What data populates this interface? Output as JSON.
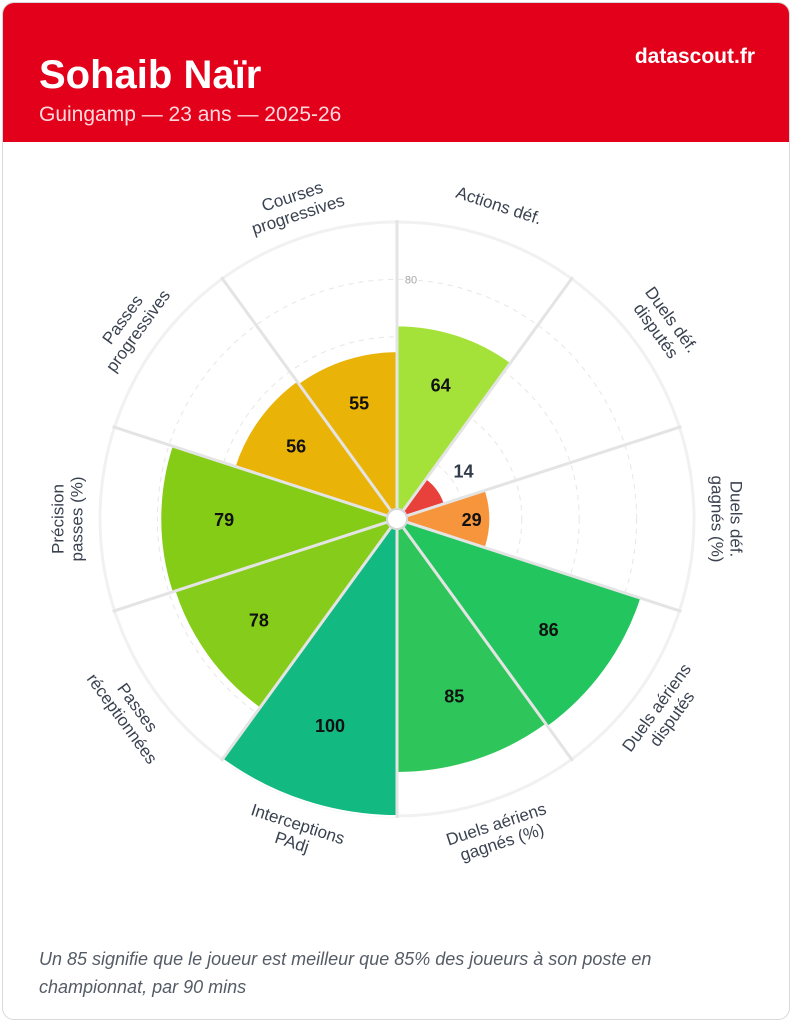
{
  "header": {
    "name": "Sohaib Naïr",
    "subtitle": "Guingamp — 23 ans — 2025-26",
    "brand": "datascout.fr"
  },
  "chart_data": {
    "type": "polar-bar",
    "max": 100,
    "ring_label": "80",
    "metrics": [
      {
        "label": [
          "Actions déf."
        ],
        "value": 64,
        "color": "#a4e23a"
      },
      {
        "label": [
          "Duels déf.",
          "disputés"
        ],
        "value": 14,
        "color": "#e8403a"
      },
      {
        "label": [
          "Duels déf.",
          "gagnés (%)"
        ],
        "value": 29,
        "color": "#f7953c"
      },
      {
        "label": [
          "Duels aériens",
          "disputés"
        ],
        "value": 86,
        "color": "#22c55e"
      },
      {
        "label": [
          "Duels aériens",
          "gagnés (%)"
        ],
        "value": 85,
        "color": "#2ec65a"
      },
      {
        "label": [
          "Interceptions",
          "PAdj"
        ],
        "value": 100,
        "color": "#12b981"
      },
      {
        "label": [
          "Passes",
          "réceptionnées"
        ],
        "value": 78,
        "color": "#86cc1a"
      },
      {
        "label": [
          "Précision",
          "passes (%)"
        ],
        "value": 79,
        "color": "#84cc16"
      },
      {
        "label": [
          "Passes",
          "progressives"
        ],
        "value": 56,
        "color": "#eab308"
      },
      {
        "label": [
          "Courses",
          "progressives"
        ],
        "value": 55,
        "color": "#eab308"
      }
    ]
  },
  "footnote": "Un 85 signifie que le joueur est meilleur que 85% des joueurs à son poste en championnat, par 90 mins"
}
